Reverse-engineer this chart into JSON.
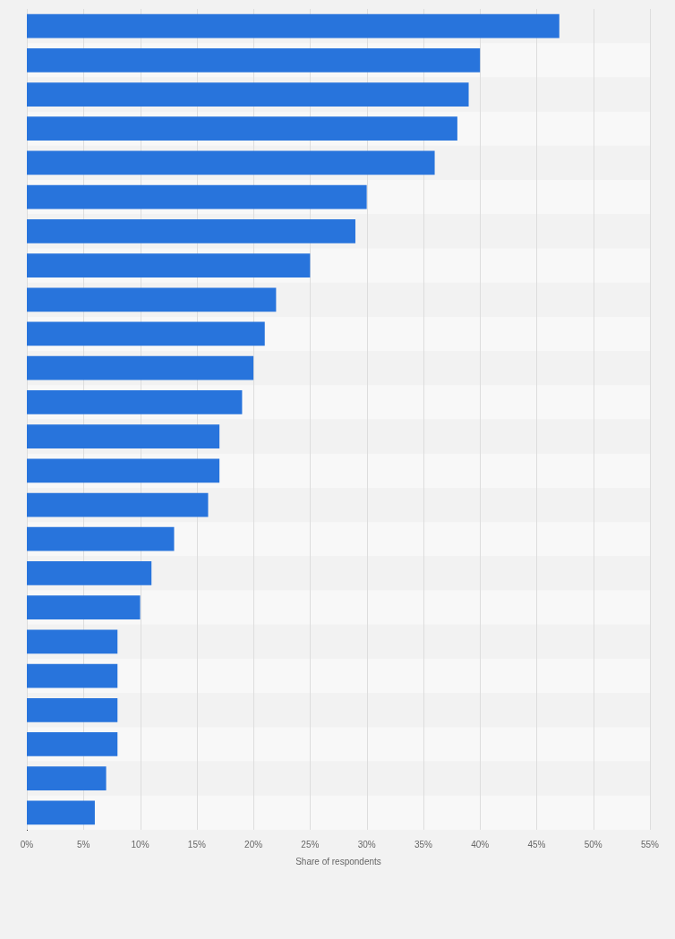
{
  "chart_data": {
    "type": "bar",
    "orientation": "horizontal",
    "xlabel": "Share of respondents",
    "categories": [
      null,
      null,
      null,
      null,
      null,
      null,
      null,
      null,
      null,
      null,
      null,
      null,
      null,
      null,
      null,
      null,
      null,
      null,
      null,
      null,
      null,
      null,
      null,
      null
    ],
    "values": [
      47,
      40,
      39,
      38,
      36,
      30,
      29,
      25,
      22,
      21,
      20,
      19,
      17,
      17,
      16,
      13,
      11,
      10,
      8,
      8,
      8,
      8,
      7,
      6
    ],
    "color": "#2874dc",
    "xlim": [
      0,
      55
    ],
    "xticks": [
      {
        "value": 0,
        "label": "0%"
      },
      {
        "value": 5,
        "label": "5%"
      },
      {
        "value": 10,
        "label": "10%"
      },
      {
        "value": 15,
        "label": "15%"
      },
      {
        "value": 20,
        "label": "20%"
      },
      {
        "value": 25,
        "label": "25%"
      },
      {
        "value": 30,
        "label": "30%"
      },
      {
        "value": 35,
        "label": "35%"
      },
      {
        "value": 40,
        "label": "40%"
      },
      {
        "value": 45,
        "label": "45%"
      },
      {
        "value": 50,
        "label": "50%"
      },
      {
        "value": 55,
        "label": "55%"
      }
    ],
    "grid": "x",
    "legend": false
  }
}
